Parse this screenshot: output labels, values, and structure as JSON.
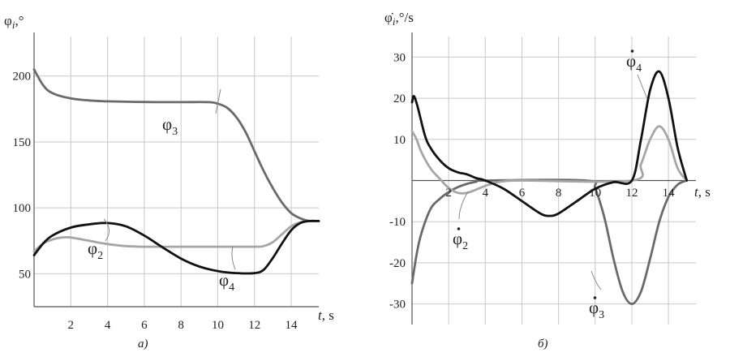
{
  "chart_data": [
    {
      "type": "line",
      "panel_label": "a)",
      "ylabel": "φ",
      "ylabel_sub": "i",
      "ylabel_unit": ",°",
      "xlabel": "t",
      "xlabel_unit": ", s",
      "xlim": [
        0,
        15.5
      ],
      "ylim": [
        25,
        230
      ],
      "x_ticks": [
        "2",
        "4",
        "6",
        "8",
        "10",
        "12",
        "14"
      ],
      "y_ticks": [
        "50",
        "100",
        "150",
        "200"
      ],
      "grid": true,
      "series": [
        {
          "name_main": "φ",
          "name_sub": "3",
          "dot": false,
          "color": "#6a6a6a",
          "points": [
            [
              0,
              205
            ],
            [
              0.5,
              193
            ],
            [
              1,
              187
            ],
            [
              2,
              183
            ],
            [
              3,
              181.5
            ],
            [
              4,
              180.8
            ],
            [
              6,
              180.3
            ],
            [
              8,
              180.2
            ],
            [
              9.5,
              180.2
            ],
            [
              10,
              179
            ],
            [
              10.5,
              176
            ],
            [
              11,
              169
            ],
            [
              11.5,
              158
            ],
            [
              12,
              143
            ],
            [
              12.5,
              128
            ],
            [
              13,
              115
            ],
            [
              13.5,
              104
            ],
            [
              14,
              96
            ],
            [
              14.5,
              92
            ],
            [
              15,
              90
            ],
            [
              15.5,
              90
            ]
          ]
        },
        {
          "name_main": "φ",
          "name_sub": "2",
          "dot": false,
          "color": "#a6a6a6",
          "points": [
            [
              0,
              67
            ],
            [
              0.5,
              73
            ],
            [
              1,
              76
            ],
            [
              1.5,
              77.5
            ],
            [
              2,
              77.5
            ],
            [
              3,
              75
            ],
            [
              4,
              72.5
            ],
            [
              5,
              71
            ],
            [
              6,
              70.5
            ],
            [
              8,
              70.5
            ],
            [
              10,
              70.5
            ],
            [
              12,
              70.5
            ],
            [
              12.5,
              71
            ],
            [
              13,
              74
            ],
            [
              13.5,
              80
            ],
            [
              14,
              86
            ],
            [
              14.5,
              89
            ],
            [
              15,
              90
            ],
            [
              15.5,
              90
            ]
          ]
        },
        {
          "name_main": "φ",
          "name_sub": "4",
          "dot": false,
          "color": "#111111",
          "points": [
            [
              0,
              64
            ],
            [
              0.5,
              73
            ],
            [
              1,
              79
            ],
            [
              2,
              85
            ],
            [
              3,
              87.5
            ],
            [
              4,
              88.5
            ],
            [
              5,
              86
            ],
            [
              6,
              79
            ],
            [
              7,
              70
            ],
            [
              8,
              61.5
            ],
            [
              9,
              55.5
            ],
            [
              10,
              52
            ],
            [
              11,
              50.5
            ],
            [
              12,
              50.5
            ],
            [
              12.5,
              53
            ],
            [
              13,
              62
            ],
            [
              13.5,
              73
            ],
            [
              14,
              83
            ],
            [
              14.5,
              88.5
            ],
            [
              15,
              90
            ],
            [
              15.5,
              90
            ]
          ]
        }
      ],
      "series_labels": [
        {
          "name_main": "φ",
          "name_sub": "3"
        },
        {
          "name_main": "φ",
          "name_sub": "2"
        },
        {
          "name_main": "φ",
          "name_sub": "4"
        }
      ]
    },
    {
      "type": "line",
      "panel_label": "б)",
      "ylabel": "φ̇",
      "ylabel_sub": "i",
      "ylabel_unit": ",°/s",
      "xlabel": "t",
      "xlabel_unit": ", s",
      "xlim": [
        0,
        15.5
      ],
      "ylim": [
        -35,
        35
      ],
      "x_ticks": [
        "2",
        "4",
        "6",
        "8",
        "10",
        "12",
        "14"
      ],
      "y_ticks": [
        "-30",
        "-20",
        "-10",
        "10",
        "20",
        "30"
      ],
      "grid": true,
      "series": [
        {
          "name_main": "φ",
          "name_sub": "3",
          "dot": true,
          "color": "#6a6a6a",
          "points": [
            [
              0,
              -25
            ],
            [
              0.25,
              -18
            ],
            [
              0.5,
              -13
            ],
            [
              1,
              -7
            ],
            [
              1.5,
              -4.5
            ],
            [
              2,
              -2.8
            ],
            [
              2.5,
              -1.6
            ],
            [
              3,
              -0.8
            ],
            [
              3.5,
              -0.3
            ],
            [
              4,
              0
            ],
            [
              9.5,
              0
            ],
            [
              10,
              -2
            ],
            [
              10.5,
              -9
            ],
            [
              11,
              -19
            ],
            [
              11.5,
              -27
            ],
            [
              12,
              -30
            ],
            [
              12.5,
              -27
            ],
            [
              13,
              -19
            ],
            [
              13.5,
              -10
            ],
            [
              14,
              -4
            ],
            [
              14.5,
              -1
            ],
            [
              15,
              0
            ]
          ]
        },
        {
          "name_main": "φ",
          "name_sub": "2",
          "dot": true,
          "color": "#a6a6a6",
          "points": [
            [
              0,
              12
            ],
            [
              0.25,
              10
            ],
            [
              0.5,
              7
            ],
            [
              1,
              3
            ],
            [
              1.5,
              0.5
            ],
            [
              2,
              -1.8
            ],
            [
              2.5,
              -3
            ],
            [
              3,
              -3
            ],
            [
              3.5,
              -2.2
            ],
            [
              4,
              -1.3
            ],
            [
              4.5,
              -0.6
            ],
            [
              5,
              -0.2
            ],
            [
              6,
              0
            ],
            [
              12,
              0
            ],
            [
              12.5,
              4
            ],
            [
              13,
              10
            ],
            [
              13.5,
              13.2
            ],
            [
              14,
              10
            ],
            [
              14.5,
              3
            ],
            [
              15,
              0
            ]
          ]
        },
        {
          "name_main": "φ",
          "name_sub": "4",
          "dot": true,
          "color": "#111111",
          "points": [
            [
              0,
              19
            ],
            [
              0.1,
              20.5
            ],
            [
              0.3,
              18
            ],
            [
              0.7,
              11
            ],
            [
              1,
              8
            ],
            [
              1.5,
              5
            ],
            [
              2,
              3
            ],
            [
              2.5,
              2
            ],
            [
              3,
              1.5
            ],
            [
              3.5,
              0.6
            ],
            [
              4,
              0
            ],
            [
              5,
              -2
            ],
            [
              6,
              -5
            ],
            [
              7,
              -8
            ],
            [
              7.5,
              -8.6
            ],
            [
              8,
              -8
            ],
            [
              9,
              -5
            ],
            [
              10,
              -2
            ],
            [
              11,
              -0.4
            ],
            [
              12,
              0
            ],
            [
              12.5,
              10
            ],
            [
              13,
              22
            ],
            [
              13.5,
              26.5
            ],
            [
              14,
              20
            ],
            [
              14.5,
              8
            ],
            [
              15,
              0
            ]
          ]
        }
      ],
      "series_labels": [
        {
          "name_main": "φ",
          "name_sub": "4"
        },
        {
          "name_main": "φ",
          "name_sub": "2"
        },
        {
          "name_main": "φ",
          "name_sub": "3"
        }
      ]
    }
  ]
}
